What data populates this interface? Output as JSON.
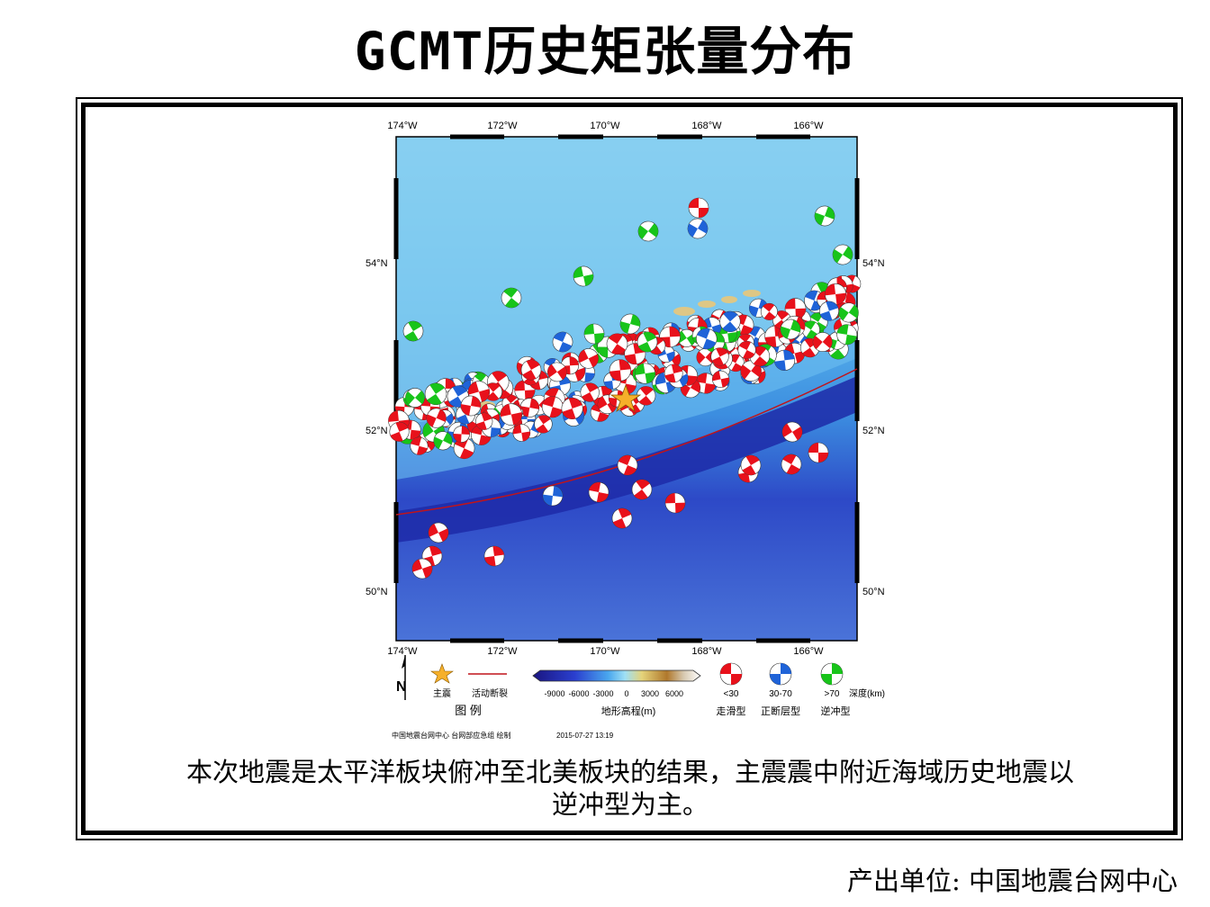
{
  "title": "GCMT历史矩张量分布",
  "map": {
    "lon_ticks": [
      "174°W",
      "172°W",
      "170°W",
      "168°W",
      "166°W"
    ],
    "lat_ticks": [
      "54°N",
      "52°N",
      "50°N"
    ],
    "north_label": "N",
    "colors": {
      "strike_slip": "#e8111b",
      "normal": "#1f63d8",
      "thrust": "#18c41a",
      "fault": "#c0141a",
      "star": "#f6b02a"
    }
  },
  "legend": {
    "star_label": "主震",
    "fault_label": "活动断裂",
    "legend_title": "图  例",
    "elevation_ticks": [
      "-9000",
      "-6000",
      "-3000",
      "0",
      "3000",
      "6000"
    ],
    "elevation_label": "地形高程(m)",
    "depth_classes": [
      "<30",
      "30-70",
      ">70"
    ],
    "depth_unit": "深度(km)",
    "mech_types": [
      "走滑型",
      "正断层型",
      "逆冲型"
    ]
  },
  "credit": "中国地震台网中心 台网部应急组 绘制",
  "date": "2015-07-27 13:19",
  "caption_line1": "本次地震是太平洋板块俯冲至北美板块的结果，主震震中附近海域历史地震以",
  "caption_line2": "逆冲型为主。",
  "footer": "产出单位: 中国地震台网中心"
}
